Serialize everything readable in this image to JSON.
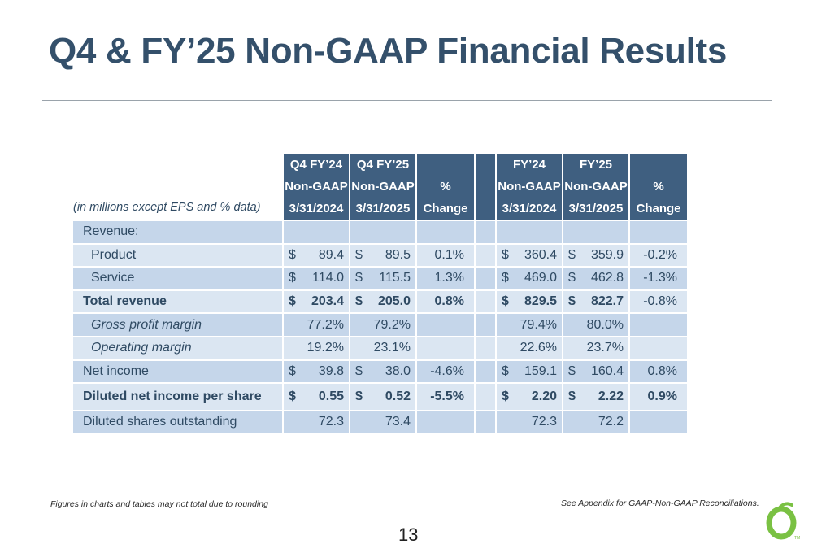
{
  "slide": {
    "title": "Q4 & FY’25 Non-GAAP Financial Results",
    "page_number": "13"
  },
  "table": {
    "units_note": "(in millions except EPS and % data)",
    "headers": [
      {
        "line1": "Q4 FY’24",
        "line2": "Non-GAAP",
        "line3": "3/31/2024"
      },
      {
        "line1": "Q4 FY’25",
        "line2": "Non-GAAP",
        "line3": "3/31/2025"
      },
      {
        "line1": "",
        "line2": "%",
        "line3": "Change"
      },
      {
        "line1": "FY’24",
        "line2": "Non-GAAP",
        "line3": "3/31/2024"
      },
      {
        "line1": "FY’25",
        "line2": "Non-GAAP",
        "line3": "3/31/2025"
      },
      {
        "line1": "",
        "line2": "%",
        "line3": "Change"
      }
    ],
    "rows": [
      {
        "label": "Revenue:",
        "q4_24": "",
        "q4_25": "",
        "q_chg": "",
        "fy_24": "",
        "fy_25": "",
        "fy_chg": ""
      },
      {
        "label": "Product",
        "q4_24": "89.4",
        "q4_25": "89.5",
        "q_chg": "0.1%",
        "fy_24": "360.4",
        "fy_25": "359.9",
        "fy_chg": "-0.2%"
      },
      {
        "label": "Service",
        "q4_24": "114.0",
        "q4_25": "115.5",
        "q_chg": "1.3%",
        "fy_24": "469.0",
        "fy_25": "462.8",
        "fy_chg": "-1.3%"
      },
      {
        "label": "Total revenue",
        "q4_24": "203.4",
        "q4_25": "205.0",
        "q_chg": "0.8%",
        "fy_24": "829.5",
        "fy_25": "822.7",
        "fy_chg": "-0.8%"
      },
      {
        "label": "Gross profit margin",
        "q4_24": "77.2%",
        "q4_25": "79.2%",
        "q_chg": "",
        "fy_24": "79.4%",
        "fy_25": "80.0%",
        "fy_chg": ""
      },
      {
        "label": "Operating margin",
        "q4_24": "19.2%",
        "q4_25": "23.1%",
        "q_chg": "",
        "fy_24": "22.6%",
        "fy_25": "23.7%",
        "fy_chg": ""
      },
      {
        "label": "Net income",
        "q4_24": "39.8",
        "q4_25": "38.0",
        "q_chg": "-4.6%",
        "fy_24": "159.1",
        "fy_25": "160.4",
        "fy_chg": "0.8%"
      },
      {
        "label": "Diluted net income per share",
        "q4_24": "0.55",
        "q4_25": "0.52",
        "q_chg": "-5.5%",
        "fy_24": "2.20",
        "fy_25": "2.22",
        "fy_chg": "0.9%"
      },
      {
        "label": "Diluted shares outstanding",
        "q4_24": "72.3",
        "q4_25": "73.4",
        "q_chg": "",
        "fy_24": "72.3",
        "fy_25": "72.2",
        "fy_chg": ""
      }
    ],
    "currency_symbol": "$"
  },
  "footnotes": {
    "left": "Figures in charts and tables may not total due to rounding",
    "right": "See  Appendix for GAAP-Non-GAAP Reconciliations."
  },
  "logo": {
    "icon": "ring-logo-icon",
    "color": "#7ac143",
    "mark": "TM"
  },
  "colors": {
    "title": "#34506b",
    "header_bg": "#3f5f80",
    "row_light": "#dbe6f2",
    "row_dark": "#c5d6ea"
  }
}
